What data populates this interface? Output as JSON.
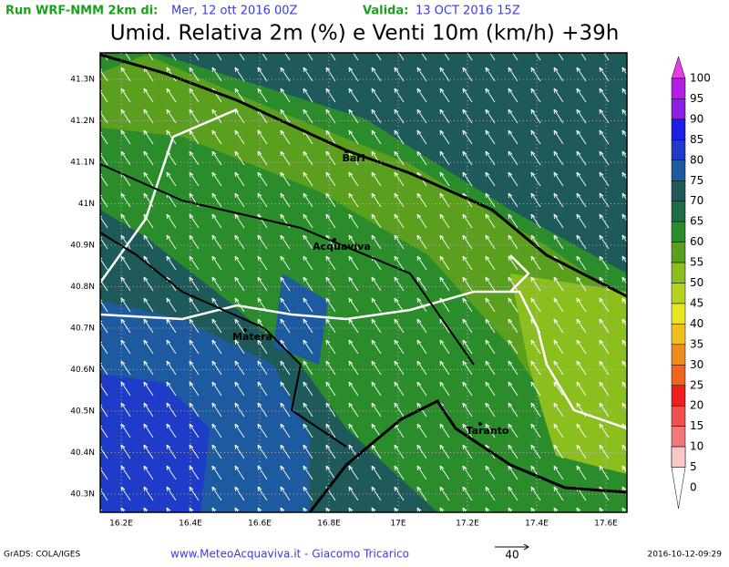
{
  "header": {
    "run_label": "Run WRF-NMM 2km di:",
    "run_date": "Mer, 12 ott 2016 00Z",
    "valid_label": "Valida:",
    "valid_date": "13 OCT 2016 15Z",
    "title": "Umid. Relativa 2m (%) e Venti 10m (km/h) +39h"
  },
  "map": {
    "lat_labels": [
      "41.3N",
      "41.2N",
      "41.1N",
      "41N",
      "40.9N",
      "40.8N",
      "40.7N",
      "40.6N",
      "40.5N",
      "40.4N",
      "40.3N"
    ],
    "lon_labels": [
      "16.2E",
      "16.4E",
      "16.6E",
      "16.8E",
      "17E",
      "17.2E",
      "17.4E",
      "17.6E"
    ],
    "places": [
      {
        "name": "Bari"
      },
      {
        "name": "Acquaviva"
      },
      {
        "name": "Matera"
      },
      {
        "name": "Taranto"
      }
    ]
  },
  "colorbar": [
    {
      "label": "100",
      "color": "#e23ee2"
    },
    {
      "label": "95",
      "color": "#b41ee6"
    },
    {
      "label": "90",
      "color": "#8c1ee6"
    },
    {
      "label": "85",
      "color": "#1e1ee6"
    },
    {
      "label": "80",
      "color": "#1e3cc8"
    },
    {
      "label": "75",
      "color": "#1e5aa0"
    },
    {
      "label": "70",
      "color": "#1e5a5a"
    },
    {
      "label": "65",
      "color": "#1e6e46"
    },
    {
      "label": "60",
      "color": "#2a8c2a"
    },
    {
      "label": "55",
      "color": "#5aa01e"
    },
    {
      "label": "50",
      "color": "#8cbe1e"
    },
    {
      "label": "45",
      "color": "#b4d21e"
    },
    {
      "label": "40",
      "color": "#e6e61e"
    },
    {
      "label": "35",
      "color": "#f0be1e"
    },
    {
      "label": "30",
      "color": "#f08c1e"
    },
    {
      "label": "25",
      "color": "#f0641e"
    },
    {
      "label": "20",
      "color": "#f01e1e"
    },
    {
      "label": "15",
      "color": "#f05050"
    },
    {
      "label": "10",
      "color": "#f07878"
    },
    {
      "label": "5",
      "color": "#f5a0a0"
    },
    {
      "label": "0",
      "color": "#fac8c8"
    }
  ],
  "footer": {
    "credit": "GrADS: COLA/IGES",
    "site": "www.MeteoAcquaviva.it - Giacomo Tricarico",
    "vector_scale": "40",
    "timestamp": "2016-10-12-09:29"
  }
}
